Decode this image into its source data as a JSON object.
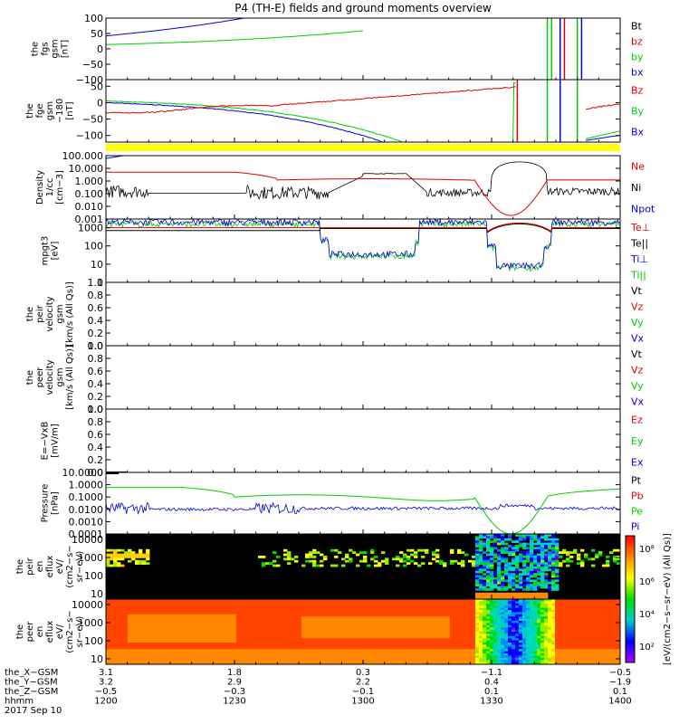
{
  "chart_data": {
    "type": "line",
    "title": "P4 (TH-E) fields and ground moments overview",
    "time_ticks": [
      "1200",
      "1230",
      "1300",
      "1330",
      "1400"
    ],
    "xlim_min": [
      0,
      120
    ],
    "panels": [
      {
        "id": "fgs",
        "ylabel": [
          "the",
          "fgs",
          "gsm",
          "[nT]"
        ],
        "yticks": [
          "100",
          "50",
          "0",
          "−50",
          "−100"
        ],
        "ylim": [
          -100,
          100
        ],
        "legend": [
          {
            "name": "Bt",
            "color": "#000000"
          },
          {
            "name": "bz",
            "color": "#dd0000"
          },
          {
            "name": "by",
            "color": "#00cc00"
          },
          {
            "name": "bx",
            "color": "#0000dd"
          }
        ]
      },
      {
        "id": "fge",
        "ylabel": [
          "the",
          "fge",
          "gsm",
          "−180",
          "[nT]"
        ],
        "yticks": [
          "50",
          "0",
          "−50",
          "−100"
        ],
        "ylim": [
          -120,
          70
        ],
        "legend": [
          {
            "name": "Bz",
            "color": "#dd0000"
          },
          {
            "name": "By",
            "color": "#00cc00"
          },
          {
            "name": "Bx",
            "color": "#0000dd"
          }
        ]
      },
      {
        "id": "density",
        "ylabel": [
          "Density",
          "1/cc",
          "[cm−3]"
        ],
        "yticks": [
          "100.000",
          "10.000",
          "1.000",
          "0.100",
          "0.010",
          "0.001"
        ],
        "ylim": [
          0.001,
          100
        ],
        "log": true,
        "legend": [
          {
            "name": "Ne",
            "color": "#dd0000"
          },
          {
            "name": "Ni",
            "color": "#000000"
          },
          {
            "name": "Npot",
            "color": "#0000dd"
          }
        ]
      },
      {
        "id": "temp",
        "ylabel": [
          "mpgt3",
          "[eV]"
        ],
        "yticks": [
          "1000",
          "100",
          "10",
          "1"
        ],
        "ylim": [
          1,
          3000
        ],
        "log": true,
        "legend": [
          {
            "name": "Te⊥",
            "color": "#dd0000"
          },
          {
            "name": "Te||",
            "color": "#000000"
          },
          {
            "name": "Ti⊥",
            "color": "#0000dd"
          },
          {
            "name": "Ti||",
            "color": "#00cc00"
          }
        ]
      },
      {
        "id": "peir_vel",
        "ylabel": [
          "the",
          "peir",
          "velocity",
          "gsm",
          "[km/s (All Qs)]"
        ],
        "yticks": [
          "1.0",
          "0.8",
          "0.6",
          "0.4",
          "0.2",
          "0.0"
        ],
        "ylim": [
          0,
          1
        ],
        "legend": [
          {
            "name": "Vt",
            "color": "#000000"
          },
          {
            "name": "Vz",
            "color": "#dd0000"
          },
          {
            "name": "Vy",
            "color": "#00cc00"
          },
          {
            "name": "Vx",
            "color": "#0000dd"
          }
        ]
      },
      {
        "id": "peer_vel",
        "ylabel": [
          "the",
          "peer",
          "velocity",
          "gsm",
          "[km/s (All Qs)]"
        ],
        "yticks": [
          "1.0",
          "0.8",
          "0.6",
          "0.4",
          "0.2",
          "0.0"
        ],
        "ylim": [
          0,
          1
        ],
        "legend": [
          {
            "name": "Vt",
            "color": "#000000"
          },
          {
            "name": "Vz",
            "color": "#dd0000"
          },
          {
            "name": "Vy",
            "color": "#00cc00"
          },
          {
            "name": "Vx",
            "color": "#0000dd"
          }
        ]
      },
      {
        "id": "efield",
        "ylabel": [
          "E=−VxB",
          "[mV/m]"
        ],
        "yticks": [
          "1.0",
          "0.8",
          "0.6",
          "0.4",
          "0.2",
          "0.0"
        ],
        "ylim": [
          0,
          1
        ],
        "legend": [
          {
            "name": "Ez",
            "color": "#dd0000"
          },
          {
            "name": "Ey",
            "color": "#00cc00"
          },
          {
            "name": "Ex",
            "color": "#0000dd"
          }
        ]
      },
      {
        "id": "pressure",
        "ylabel": [
          "Pressure",
          "[nPa]"
        ],
        "yticks": [
          "10.0000",
          "1.0000",
          "0.1000",
          "0.0100",
          "0.0010",
          "0.0001"
        ],
        "ylim": [
          0.0001,
          10
        ],
        "log": true,
        "legend": [
          {
            "name": "Pt",
            "color": "#000000"
          },
          {
            "name": "Pb",
            "color": "#dd0000"
          },
          {
            "name": "Pe",
            "color": "#00cc00"
          },
          {
            "name": "Pi",
            "color": "#0000dd"
          }
        ]
      },
      {
        "id": "peir_spec",
        "ylabel": [
          "the",
          "peir",
          "en",
          "eflux",
          "eV/",
          "(cm2−s−",
          "sr−eV)"
        ],
        "yticks": [
          "10000",
          "1000",
          "100",
          "10"
        ],
        "ylim": [
          5,
          20000
        ],
        "log": true,
        "spectrogram": true
      },
      {
        "id": "peer_spec",
        "ylabel": [
          "the",
          "peer",
          "en",
          "eflux",
          "eV/",
          "(cm2−s−",
          "sr−eV)"
        ],
        "yticks": [
          "10000",
          "1000",
          "100",
          "10"
        ],
        "ylim": [
          5,
          20000
        ],
        "log": true,
        "spectrogram": true
      }
    ],
    "colorbar": {
      "ticks": [
        "10⁸",
        "10⁶",
        "10⁴",
        "10²"
      ],
      "label": "[eV/(cm2−s−sr−eV) (All Qs)]",
      "colors": [
        "#ff0000",
        "#ff8800",
        "#ffff00",
        "#00dd00",
        "#00cccc",
        "#0000ff",
        "#aa00ff"
      ]
    },
    "orbit_rows": [
      {
        "label": "the_X−GSM",
        "values": [
          "3.1",
          "1.8",
          "0.3",
          "−1.1",
          "−0.5"
        ]
      },
      {
        "label": "the_Y−GSM",
        "values": [
          "3.2",
          "2.9",
          "2.2",
          "0.4",
          "−1.9"
        ]
      },
      {
        "label": "the_Z−GSM",
        "values": [
          "−0.5",
          "−0.3",
          "−0.1",
          "0.1",
          "0.1"
        ]
      },
      {
        "label": "hhmm",
        "values": [
          "1200",
          "1230",
          "1300",
          "1330",
          "1400"
        ]
      }
    ],
    "date": "2017 Sep 10"
  }
}
